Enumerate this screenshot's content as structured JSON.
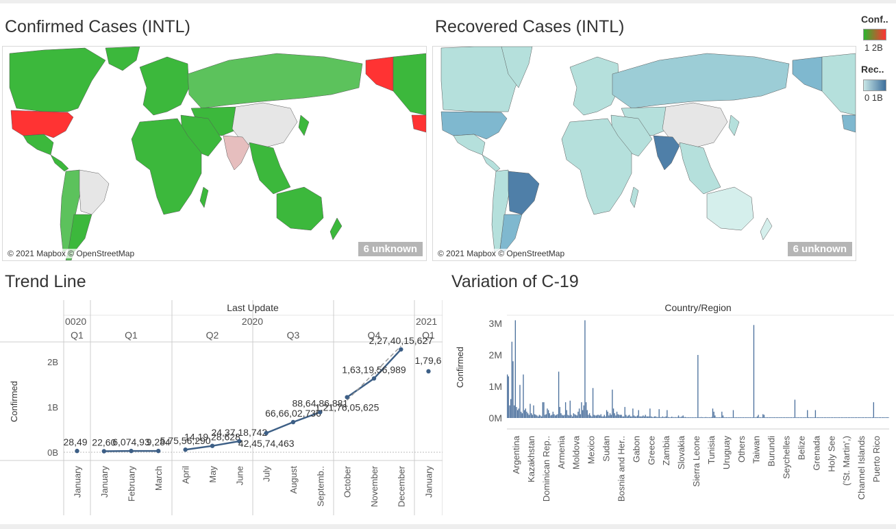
{
  "dashboard": {
    "titles": {
      "confirmed_map": "Confirmed Cases (INTL)",
      "recovered_map": "Recovered Cases (INTL)",
      "trend": "Trend Line",
      "variation": "Variation of C-19"
    },
    "map": {
      "attribution": "© 2021 Mapbox © OpenStreetMap",
      "unknown_badge": "6 unknown"
    },
    "legends": {
      "confirmed": {
        "title": "Conf..",
        "range": "1 2B",
        "colors": [
          "#2db42d",
          "#ff3333"
        ]
      },
      "recovered": {
        "title": "Rec..",
        "range": "0 1B",
        "colors": [
          "#c8e6e6",
          "#3d6f9c"
        ]
      }
    },
    "colors": {
      "confirmed_green": "#3cb83c",
      "confirmed_light_green": "#5cc25c",
      "confirmed_red": "#ff3333",
      "recovered_light": "#b5e0dc",
      "recovered_mid": "#7fb8cf",
      "recovered_dark": "#4f7fa8",
      "no_data": "#e6e6e6",
      "trend_line": "#3d5f86",
      "bar": "#4a6f9c"
    }
  },
  "chart_data": [
    {
      "type": "line",
      "title": "Trend Line",
      "header": "Last Update",
      "years": [
        "0020",
        "2020",
        "2021"
      ],
      "quarters": [
        "Q1",
        "Q1",
        "Q2",
        "Q3",
        "Q4",
        "Q1"
      ],
      "ylabel": "Confirmed",
      "yticks": [
        "0B",
        "1B",
        "2B"
      ],
      "ylim": [
        0,
        2.4
      ],
      "points": [
        {
          "month": "January",
          "value": 0.0284,
          "label": "28,49",
          "group": 0
        },
        {
          "month": "January",
          "value": 0.0226,
          "label": "22,60",
          "group": 1
        },
        {
          "month": "February",
          "value": 0.0284,
          "label": "6,074,93",
          "group": 1
        },
        {
          "month": "March",
          "value": 0.0284,
          "label": "9,284",
          "group": 1
        },
        {
          "month": "April",
          "value": 0.057,
          "label": "5,75,56,290",
          "group": 2
        },
        {
          "month": "May",
          "value": 0.141,
          "label": "14,19,28,628",
          "group": 2
        },
        {
          "month": "June",
          "value": 0.2437,
          "label": "24,37,18,742",
          "group": 2
        },
        {
          "month": "July",
          "value": 0.4245,
          "label": "42,45,74,463",
          "group": 3
        },
        {
          "month": "August",
          "value": 0.6666,
          "label": "66,66,02,736",
          "group": 3
        },
        {
          "month": "Septemb..",
          "value": 0.8864,
          "label": "88,64,86,881",
          "group": 3
        },
        {
          "month": "October",
          "value": 1.2176,
          "label": "1,21,76,05,625",
          "group": 4
        },
        {
          "month": "November",
          "value": 1.6319,
          "label": "1,63,19,56,989",
          "group": 4
        },
        {
          "month": "December",
          "value": 2.274,
          "label": "2,27,40,15,627",
          "group": 4
        },
        {
          "month": "January",
          "value": 1.79,
          "label": "1,79,6",
          "group": 5
        }
      ]
    },
    {
      "type": "bar",
      "title": "Variation of C-19",
      "header": "Country/Region",
      "ylabel": "Confirmed",
      "yticks": [
        "0M",
        "1M",
        "2M",
        "3M"
      ],
      "ylim": [
        0,
        3.1
      ],
      "axis_labels": [
        "Argentina",
        "Kazakhstan",
        "Dominican Rep..",
        "Armenia",
        "Moldova",
        "Mexico",
        "Sudan",
        "Bosnia and Her..",
        "Gabon",
        "Greece",
        "Zambia",
        "Slovakia",
        "Sierra Leone",
        "Tunisia",
        "Uruguay",
        "Others",
        "Taiwan",
        "Burundi",
        "Seychelles",
        "Belize",
        "Grenada",
        "Holy See",
        "('St. Martin',)",
        "Channel Islands",
        "Puerto Rico"
      ],
      "values": [
        1.38,
        1.32,
        0.4,
        0.6,
        2.42,
        1.8,
        0.4,
        3.1,
        0.35,
        0.25,
        0.3,
        1.05,
        0.2,
        0.15,
        1.38,
        0.25,
        0.3,
        0.2,
        0.15,
        0.1,
        0.45,
        0.15,
        0.1,
        0.4,
        0.12,
        0.1,
        0.08,
        0.05,
        0.1,
        0.08,
        0.05,
        0.5,
        0.5,
        0.1,
        0.12,
        0.3,
        0.25,
        0.15,
        0.08,
        0.1,
        0.2,
        0.12,
        0.08,
        0.1,
        0.12,
        1.47,
        0.35,
        0.15,
        0.1,
        0.08,
        0.1,
        0.5,
        0.25,
        0.1,
        0.08,
        0.55,
        0.1,
        0.05,
        0.15,
        0.12,
        0.1,
        0.08,
        0.2,
        0.3,
        0.12,
        0.5,
        0.25,
        0.4,
        3.1,
        0.5,
        0.25,
        0.1,
        0.15,
        0.08,
        0.05,
        0.95,
        0.1,
        0.08,
        0.08,
        0.1,
        0.1,
        0.08,
        0.12,
        0.05,
        0.05,
        0.1,
        0.05,
        0.25,
        0.2,
        0.08,
        0.15,
        0.1,
        0.9,
        0.3,
        0.15,
        0.08,
        0.2,
        0.12,
        0.1,
        0.1,
        0.1,
        0.05,
        0.05,
        0.35,
        0.1,
        0.05,
        0.08,
        0.1,
        0.05,
        0.05,
        0.3,
        0.08,
        0.05,
        0.05,
        0.08,
        0.25,
        0.05,
        0.05,
        0.05,
        0.08,
        0.05,
        0.1,
        0.05,
        0.05,
        0.05,
        0.3,
        0.05,
        0.03,
        0.03,
        0.05,
        0.05,
        0.03,
        0.03,
        0.28,
        0.03,
        0.02,
        0.05,
        0.03,
        0.03,
        0.05,
        0.25,
        0.03,
        0.02,
        0.02,
        0.04,
        0.03,
        0.02,
        0.03,
        0.02,
        0.03,
        0.08,
        0.03,
        0.03,
        0.05,
        0.08,
        0.03,
        0.03,
        0.02,
        0.02,
        0.02,
        0.02,
        0.02,
        0.02,
        0.02,
        0.02,
        0.02,
        0.02,
        2.0,
        0.02,
        0.02,
        0.03,
        0.02,
        0.02,
        0.02,
        0.03,
        0.02,
        0.02,
        0.02,
        0.02,
        0.03,
        0.3,
        0.2,
        0.08,
        0.02,
        0.02,
        0.02,
        0.02,
        0.02,
        0.2,
        0.08,
        0.02,
        0.02,
        0.02,
        0.02,
        0.02,
        0.02,
        0.02,
        0.02,
        0.25,
        0.02,
        0.02,
        0.02,
        0.02,
        0.02,
        0.02,
        0.02,
        0.02,
        0.02,
        0.02,
        0.02,
        0.02,
        0.02,
        0.02,
        0.02,
        0.02,
        0.02,
        2.95,
        0.02,
        0.02,
        0.05,
        0.1,
        0.02,
        0.02,
        0.02,
        0.12,
        0.1,
        0.02,
        0.02,
        0.02,
        0.02,
        0.02,
        0.02,
        0.02,
        0.02,
        0.02,
        0.02,
        0.02,
        0.02,
        0.02,
        0.02,
        0.02,
        0.02,
        0.02,
        0.02,
        0.02,
        0.02,
        0.02,
        0.02,
        0.02,
        0.02,
        0.02,
        0.02,
        0.58,
        0.02,
        0.02,
        0.02,
        0.02,
        0.02,
        0.02,
        0.02,
        0.02,
        0.02,
        0.02,
        0.25,
        0.02,
        0.02,
        0.02,
        0.02,
        0.02,
        0.02,
        0.25,
        0.02,
        0.02,
        0.02,
        0.02,
        0.02,
        0.02,
        0.02,
        0.02,
        0.02,
        0.02,
        0.02,
        0.02,
        0.02,
        0.02,
        0.02,
        0.02,
        0.02,
        0.02,
        0.02,
        0.02,
        0.02,
        0.02,
        0.02,
        0.02,
        0.02,
        0.02,
        0.02,
        0.02,
        0.02,
        0.02,
        0.02,
        0.02,
        0.02,
        0.02,
        0.02,
        0.02,
        0.02,
        0.02,
        0.02,
        0.02,
        0.02,
        0.02,
        0.02,
        0.02,
        0.02,
        0.02,
        0.02,
        0.02,
        0.02,
        0.02,
        0.5,
        0.02,
        0.02,
        0.02,
        0.02,
        0.02,
        0.02,
        0.02,
        0.02,
        0.02,
        0.02,
        0.02,
        0.02,
        0.02
      ]
    }
  ]
}
